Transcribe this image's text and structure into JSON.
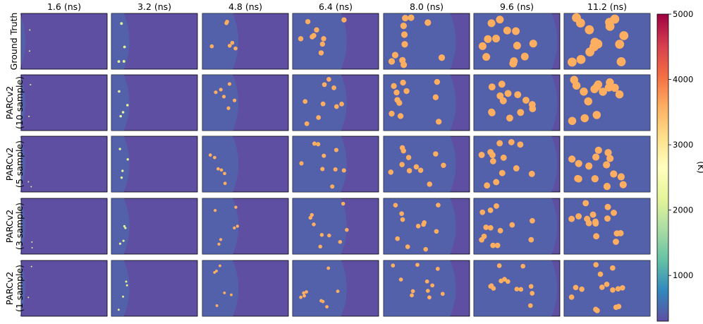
{
  "chart_data": {
    "type": "heatmap",
    "columns": [
      "1.6 (ns)",
      "3.2 (ns)",
      "4.8 (ns)",
      "6.4 (ns)",
      "8.0 (ns)",
      "9.6 (ns)",
      "11.2 (ns)"
    ],
    "rows": [
      [
        "Ground Truth"
      ],
      [
        "PARCv2",
        "(10 sample)"
      ],
      [
        "PARCv2",
        "(5 sample)"
      ],
      [
        "PARCv2",
        "(3 sample)"
      ],
      [
        "PARCv2",
        "(1 sample)"
      ]
    ],
    "colorbar": {
      "label": "(K)",
      "min": 300,
      "max": 5000,
      "ticks": [
        1000,
        2000,
        3000,
        4000,
        5000
      ],
      "tick_labels": [
        "1000",
        "2000",
        "3000",
        "4000",
        "5000"
      ],
      "colormap": "Spectral_r"
    },
    "shock_front_fraction": [
      [
        0.05,
        0.21,
        0.42,
        0.63,
        0.84,
        0.97,
        1.0
      ],
      [
        0.05,
        0.21,
        0.42,
        0.63,
        0.84,
        0.97,
        1.0
      ],
      [
        0.05,
        0.21,
        0.42,
        0.63,
        0.84,
        0.97,
        1.0
      ],
      [
        0.05,
        0.21,
        0.42,
        0.63,
        0.84,
        0.97,
        1.0
      ],
      [
        0.05,
        0.21,
        0.42,
        0.63,
        0.84,
        0.97,
        1.0
      ]
    ],
    "background_temperature": 300,
    "hotspot_temperature": 3600
  }
}
